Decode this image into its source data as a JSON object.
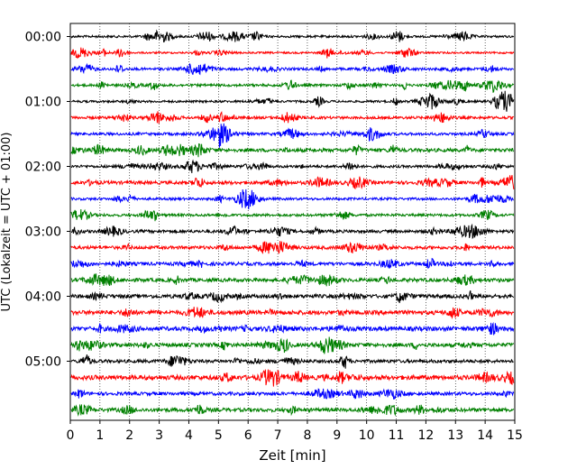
{
  "chart_data": {
    "type": "line",
    "title": "",
    "xlabel": "Zeit  [min]",
    "ylabel": "UTC (Lokalzeit = UTC + 01:00)",
    "xlim": [
      0,
      15
    ],
    "x_ticks": [
      "0",
      "1",
      "2",
      "3",
      "4",
      "5",
      "6",
      "7",
      "8",
      "9",
      "10",
      "11",
      "12",
      "13",
      "14",
      "15"
    ],
    "y_ticks": [
      "00:00",
      "01:00",
      "02:00",
      "03:00",
      "04:00",
      "05:00"
    ],
    "trace_interval_minutes": 15,
    "grid": "vertical dotted at every minute",
    "colors": [
      "#000000",
      "#ff0000",
      "#0000ff",
      "#008000"
    ],
    "series": [
      {
        "start": "00:00",
        "color": "#000000"
      },
      {
        "start": "00:15",
        "color": "#ff0000"
      },
      {
        "start": "00:30",
        "color": "#0000ff"
      },
      {
        "start": "00:45",
        "color": "#008000"
      },
      {
        "start": "01:00",
        "color": "#000000"
      },
      {
        "start": "01:15",
        "color": "#ff0000"
      },
      {
        "start": "01:30",
        "color": "#0000ff"
      },
      {
        "start": "01:45",
        "color": "#008000"
      },
      {
        "start": "02:00",
        "color": "#000000"
      },
      {
        "start": "02:15",
        "color": "#ff0000"
      },
      {
        "start": "02:30",
        "color": "#0000ff"
      },
      {
        "start": "02:45",
        "color": "#008000"
      },
      {
        "start": "03:00",
        "color": "#000000"
      },
      {
        "start": "03:15",
        "color": "#ff0000"
      },
      {
        "start": "03:30",
        "color": "#0000ff"
      },
      {
        "start": "03:45",
        "color": "#008000"
      },
      {
        "start": "04:00",
        "color": "#000000"
      },
      {
        "start": "04:15",
        "color": "#ff0000"
      },
      {
        "start": "04:30",
        "color": "#0000ff"
      },
      {
        "start": "04:45",
        "color": "#008000"
      },
      {
        "start": "05:00",
        "color": "#000000"
      },
      {
        "start": "05:15",
        "color": "#ff0000"
      },
      {
        "start": "05:30",
        "color": "#0000ff"
      },
      {
        "start": "05:45",
        "color": "#008000"
      }
    ]
  }
}
